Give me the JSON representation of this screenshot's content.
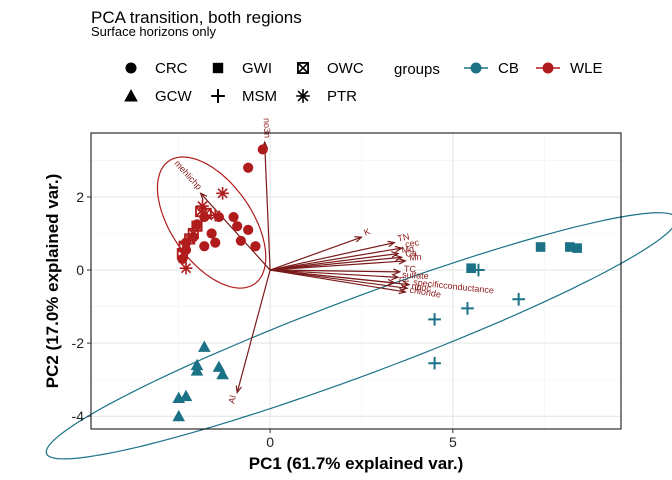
{
  "chart_data": {
    "type": "scatter",
    "title": "PCA transition, both regions",
    "subtitle": "Surface horizons only",
    "xlabel": "PC1 (61.7% explained var.)",
    "ylabel": "PC2 (17.0% explained var.)",
    "xlim": [
      -4.9,
      9.6
    ],
    "ylim": [
      -4.35,
      3.75
    ],
    "xticks": [
      0,
      5
    ],
    "yticks": [
      -4,
      -2,
      0,
      2
    ],
    "grid": true,
    "legend_position": "top",
    "shape_legend": {
      "items": [
        {
          "label": "CRC",
          "shape": "circle"
        },
        {
          "label": "GWI",
          "shape": "square"
        },
        {
          "label": "OWC",
          "shape": "square-x"
        },
        {
          "label": "GCW",
          "shape": "triangle"
        },
        {
          "label": "MSM",
          "shape": "plus"
        },
        {
          "label": "PTR",
          "shape": "asterisk"
        }
      ]
    },
    "color_legend": {
      "title": "groups",
      "items": [
        {
          "label": "CB",
          "color": "#1b7287"
        },
        {
          "label": "WLE",
          "color": "#b01c1c"
        }
      ]
    },
    "series": [
      {
        "name": "CB",
        "color": "#1b7287",
        "ellipse": {
          "cx": 2.5,
          "cy": -1.8,
          "rx": 9.2,
          "ry": 1.05,
          "angle_deg": 20.5
        },
        "points": [
          {
            "x": -2.5,
            "y": -4.0,
            "site": "GCW"
          },
          {
            "x": -2.5,
            "y": -3.5,
            "site": "GCW"
          },
          {
            "x": -2.3,
            "y": -3.45,
            "site": "GCW"
          },
          {
            "x": -2.0,
            "y": -2.6,
            "site": "GCW"
          },
          {
            "x": -2.0,
            "y": -2.75,
            "site": "GCW"
          },
          {
            "x": -1.8,
            "y": -2.1,
            "site": "GCW"
          },
          {
            "x": -1.4,
            "y": -2.65,
            "site": "GCW"
          },
          {
            "x": -1.3,
            "y": -2.85,
            "site": "GCW"
          },
          {
            "x": 5.5,
            "y": 0.05,
            "site": "GWI"
          },
          {
            "x": 7.4,
            "y": 0.63,
            "site": "GWI"
          },
          {
            "x": 8.2,
            "y": 0.63,
            "site": "GWI"
          },
          {
            "x": 8.4,
            "y": 0.6,
            "site": "GWI"
          },
          {
            "x": 5.7,
            "y": 0.0,
            "site": "MSM"
          },
          {
            "x": 4.5,
            "y": -1.35,
            "site": "MSM"
          },
          {
            "x": 4.5,
            "y": -2.55,
            "site": "MSM"
          },
          {
            "x": 5.4,
            "y": -1.05,
            "site": "MSM"
          },
          {
            "x": 6.8,
            "y": -0.8,
            "site": "MSM"
          }
        ]
      },
      {
        "name": "WLE",
        "color": "#b01c1c",
        "ellipse": {
          "cx": -1.6,
          "cy": 1.3,
          "rx": 1.1,
          "ry": 2.05,
          "angle_deg": 35
        },
        "points": [
          {
            "x": -0.2,
            "y": 3.3,
            "site": "CRC"
          },
          {
            "x": -0.6,
            "y": 2.8,
            "site": "CRC"
          },
          {
            "x": -1.0,
            "y": 1.45,
            "site": "CRC"
          },
          {
            "x": -1.4,
            "y": 1.45,
            "site": "CRC"
          },
          {
            "x": -1.8,
            "y": 1.45,
            "site": "CRC"
          },
          {
            "x": -2.0,
            "y": 1.25,
            "site": "CRC"
          },
          {
            "x": -0.9,
            "y": 1.2,
            "site": "CRC"
          },
          {
            "x": -0.6,
            "y": 1.1,
            "site": "CRC"
          },
          {
            "x": -0.8,
            "y": 0.8,
            "site": "CRC"
          },
          {
            "x": -1.5,
            "y": 0.75,
            "site": "CRC"
          },
          {
            "x": -1.6,
            "y": 1.0,
            "site": "CRC"
          },
          {
            "x": -2.1,
            "y": 0.9,
            "site": "CRC"
          },
          {
            "x": -1.8,
            "y": 0.65,
            "site": "CRC"
          },
          {
            "x": -0.4,
            "y": 0.65,
            "site": "CRC"
          },
          {
            "x": -2.3,
            "y": 0.75,
            "site": "CRC"
          },
          {
            "x": -2.3,
            "y": 0.55,
            "site": "CRC"
          },
          {
            "x": -2.4,
            "y": 0.3,
            "site": "CRC"
          },
          {
            "x": -1.9,
            "y": 1.6,
            "site": "OWC"
          },
          {
            "x": -1.75,
            "y": 1.55,
            "site": "OWC"
          },
          {
            "x": -2.0,
            "y": 1.2,
            "site": "OWC"
          },
          {
            "x": -2.1,
            "y": 1.0,
            "site": "OWC"
          },
          {
            "x": -2.2,
            "y": 0.85,
            "site": "OWC"
          },
          {
            "x": -2.35,
            "y": 0.65,
            "site": "OWC"
          },
          {
            "x": -2.4,
            "y": 0.45,
            "site": "OWC"
          },
          {
            "x": -1.3,
            "y": 2.1,
            "site": "PTR"
          },
          {
            "x": -1.85,
            "y": 1.75,
            "site": "PTR"
          },
          {
            "x": -1.5,
            "y": 1.5,
            "site": "PTR"
          },
          {
            "x": -2.3,
            "y": 0.05,
            "site": "PTR"
          }
        ]
      }
    ],
    "loadings": {
      "color": "#7a1a1a",
      "vectors": [
        {
          "label": "no3n",
          "x": -0.15,
          "y": 3.5
        },
        {
          "label": "mehlichp",
          "x": -1.9,
          "y": 2.1
        },
        {
          "label": "K",
          "x": 2.5,
          "y": 0.9
        },
        {
          "label": "TN",
          "x": 3.4,
          "y": 0.75
        },
        {
          "label": "cec",
          "x": 3.6,
          "y": 0.6
        },
        {
          "label": "Mg",
          "x": 3.5,
          "y": 0.45
        },
        {
          "label": "Ca",
          "x": 3.6,
          "y": 0.35
        },
        {
          "label": "Mn",
          "x": 3.7,
          "y": 0.25
        },
        {
          "label": "TC",
          "x": 3.55,
          "y": -0.05
        },
        {
          "label": "Fe",
          "x": 3.4,
          "y": -0.35
        },
        {
          "label": "sulfate",
          "x": 3.5,
          "y": -0.2
        },
        {
          "label": "specificconductance",
          "x": 3.8,
          "y": -0.4
        },
        {
          "label": "chloride",
          "x": 3.7,
          "y": -0.6
        },
        {
          "label": "npoc",
          "x": 3.75,
          "y": -0.5
        },
        {
          "label": "Al",
          "x": -0.9,
          "y": -3.35
        }
      ]
    }
  }
}
